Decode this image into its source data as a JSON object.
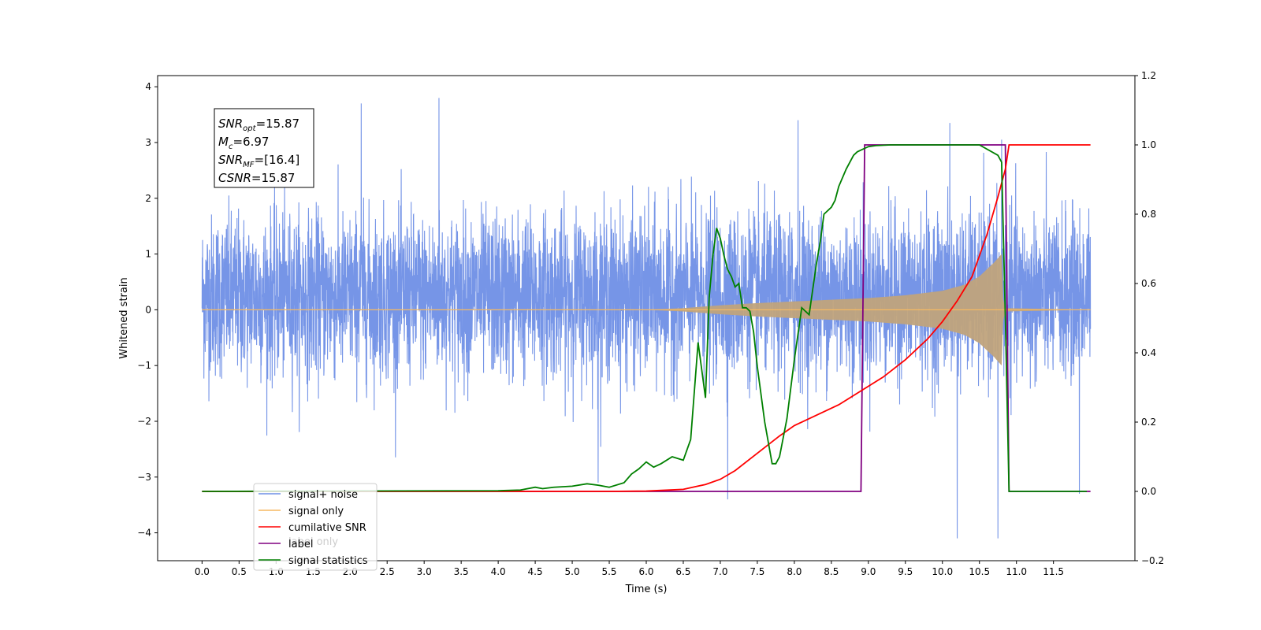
{
  "chart_data": {
    "type": "line",
    "xlabel": "Time (s)",
    "ylabel": "Whitened strain",
    "xlim": [
      -0.6,
      12.6
    ],
    "ylim": [
      -4.5,
      4.2
    ],
    "y2lim": [
      -0.2,
      1.2
    ],
    "x_ticks": [
      "0.0",
      "0.5",
      "1.0",
      "1.5",
      "2.0",
      "2.5",
      "3.0",
      "3.5",
      "4.0",
      "4.5",
      "5.0",
      "5.5",
      "6.0",
      "6.5",
      "7.0",
      "7.5",
      "8.0",
      "8.5",
      "9.0",
      "9.5",
      "10.0",
      "10.5",
      "11.0",
      "11.5"
    ],
    "y_ticks": [
      "4",
      "3",
      "2",
      "1",
      "0",
      "−1",
      "−2",
      "−3",
      "−4"
    ],
    "y2_ticks": [
      "1.2",
      "1.0",
      "0.8",
      "0.6",
      "0.4",
      "0.2",
      "0.0",
      "−0.2"
    ],
    "annotation": {
      "lines": [
        {
          "sym": "SNR",
          "sub": "opt",
          "text": "=15.87"
        },
        {
          "sym": "M",
          "sub": "c",
          "text": "=6.97"
        },
        {
          "sym": "SNR",
          "sub": "MF",
          "text": "=[16.4]"
        },
        {
          "sym": "CSNR",
          "sub": "",
          "text": "=15.87"
        }
      ]
    },
    "legend": {
      "placement": "lower-left",
      "entries": [
        {
          "label": "signal+ noise",
          "color": "#6f8fe6"
        },
        {
          "label": "signal only",
          "color": "#f5b962"
        },
        {
          "label": "cumilative SNR",
          "color": "#ff0000"
        },
        {
          "label": "label",
          "color": "#800080"
        },
        {
          "label": "signal statistics",
          "color": "#008000"
        }
      ],
      "hidden_text": "label only"
    },
    "series": [
      {
        "name": "signal+ noise",
        "axis": "left",
        "color": "#6f8fe6",
        "x_range": [
          0.0,
          12.0
        ],
        "noise_amplitude": 1.9,
        "max_values": [
          3.8,
          3.7,
          3.35,
          3.3
        ],
        "min_values": [
          -4.1,
          -4.1,
          -3.4,
          -3.3
        ]
      },
      {
        "name": "signal only",
        "axis": "left",
        "color": "#c0a37c",
        "envelope": [
          [
            6.0,
            0.0
          ],
          [
            6.5,
            0.03
          ],
          [
            7.0,
            0.08
          ],
          [
            7.5,
            0.12
          ],
          [
            8.0,
            0.15
          ],
          [
            8.5,
            0.18
          ],
          [
            9.0,
            0.21
          ],
          [
            9.5,
            0.26
          ],
          [
            10.0,
            0.34
          ],
          [
            10.3,
            0.45
          ],
          [
            10.5,
            0.6
          ],
          [
            10.7,
            0.85
          ],
          [
            10.8,
            1.0
          ],
          [
            10.82,
            0.2
          ],
          [
            10.85,
            0.03
          ],
          [
            12.0,
            0.0
          ]
        ]
      },
      {
        "name": "cumilative SNR",
        "axis": "right",
        "color": "#ff0000",
        "x": [
          0.0,
          5.5,
          6.0,
          6.5,
          6.8,
          7.0,
          7.2,
          7.5,
          7.8,
          8.0,
          8.3,
          8.6,
          8.9,
          9.2,
          9.5,
          9.8,
          10.0,
          10.2,
          10.4,
          10.6,
          10.75,
          10.85,
          10.9,
          11.0,
          12.0
        ],
        "y": [
          0.0,
          0.0,
          0.001,
          0.006,
          0.02,
          0.035,
          0.06,
          0.11,
          0.16,
          0.19,
          0.22,
          0.25,
          0.29,
          0.33,
          0.38,
          0.44,
          0.49,
          0.55,
          0.62,
          0.74,
          0.85,
          0.93,
          1.0,
          1.0,
          1.0
        ]
      },
      {
        "name": "label",
        "axis": "right",
        "color": "#800080",
        "x": [
          0.0,
          8.9,
          8.95,
          10.85,
          10.9,
          12.0
        ],
        "y": [
          0.0,
          0.0,
          1.0,
          1.0,
          0.0,
          0.0
        ]
      },
      {
        "name": "signal statistics",
        "axis": "right",
        "color": "#008000",
        "x": [
          0.0,
          4.0,
          4.3,
          4.5,
          4.6,
          4.75,
          5.0,
          5.2,
          5.35,
          5.5,
          5.7,
          5.8,
          5.9,
          6.0,
          6.1,
          6.2,
          6.35,
          6.5,
          6.55,
          6.6,
          6.7,
          6.75,
          6.8,
          6.85,
          6.9,
          6.95,
          7.0,
          7.05,
          7.1,
          7.15,
          7.2,
          7.25,
          7.3,
          7.35,
          7.4,
          7.45,
          7.5,
          7.6,
          7.7,
          7.75,
          7.8,
          7.9,
          8.0,
          8.1,
          8.2,
          8.3,
          8.35,
          8.4,
          8.5,
          8.55,
          8.6,
          8.7,
          8.8,
          8.85,
          8.9,
          9.0,
          9.1,
          9.3,
          9.5,
          9.8,
          10.0,
          10.5,
          10.75,
          10.8,
          10.85,
          10.9,
          11.0,
          11.5,
          11.95
        ],
        "y": [
          0.0,
          0.002,
          0.004,
          0.012,
          0.008,
          0.012,
          0.015,
          0.022,
          0.018,
          0.012,
          0.025,
          0.05,
          0.065,
          0.085,
          0.07,
          0.08,
          0.1,
          0.09,
          0.12,
          0.15,
          0.43,
          0.35,
          0.27,
          0.56,
          0.68,
          0.76,
          0.73,
          0.68,
          0.64,
          0.62,
          0.59,
          0.6,
          0.53,
          0.53,
          0.52,
          0.46,
          0.36,
          0.2,
          0.08,
          0.08,
          0.1,
          0.21,
          0.38,
          0.53,
          0.51,
          0.66,
          0.72,
          0.8,
          0.82,
          0.84,
          0.88,
          0.93,
          0.97,
          0.98,
          0.985,
          0.995,
          0.998,
          1.0,
          1.0,
          1.0,
          1.0,
          1.0,
          0.97,
          0.95,
          0.5,
          0.0,
          0.0,
          0.0,
          0.0
        ]
      }
    ]
  }
}
